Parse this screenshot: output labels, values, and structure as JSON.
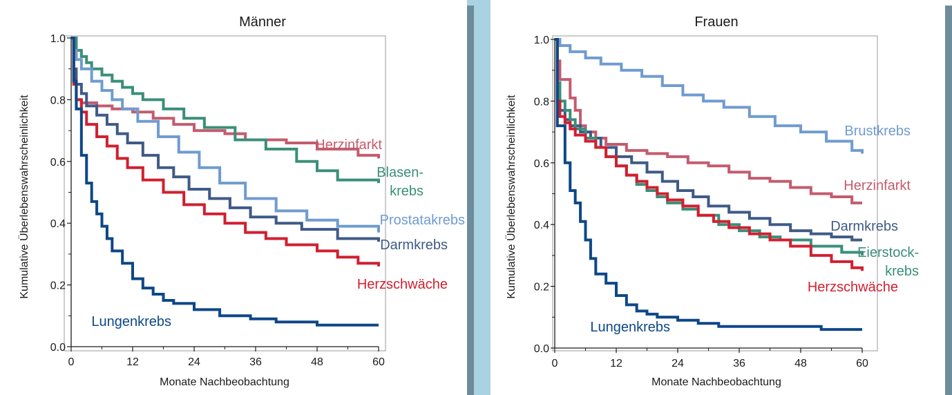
{
  "colors": {
    "Herzinfarkt": "#c45b6d",
    "Blasenkrebs": "#3a8f78",
    "Prostatakrebs": "#6f9bd0",
    "Darmkrebs": "#3f5a86",
    "Herzschwäche": "#d11f30",
    "Lungenkrebs": "#0d4787",
    "Brustkrebs": "#6f9bd0",
    "Eierstockkrebs": "#3a8f78"
  },
  "chart_data": [
    {
      "type": "line",
      "step": true,
      "title": "Männer",
      "xlabel": "Monate Nachbeobachtung",
      "ylabel": "Kumulative Überlebenswahrscheinlichkeit",
      "xlim": [
        0,
        60
      ],
      "ylim": [
        0,
        1
      ],
      "xticks": [
        "0",
        "12",
        "24",
        "36",
        "48",
        "60"
      ],
      "yticks": [
        "0.0",
        "0.2",
        "0.4",
        "0.6",
        "0.8",
        "1.0"
      ],
      "series": [
        {
          "name": "Herzinfarkt",
          "label": [
            "Herzinfarkt"
          ],
          "label_anchor": "end",
          "color_key": "Herzinfarkt",
          "x": [
            0,
            0.5,
            1,
            2,
            5,
            8,
            12,
            16,
            20,
            24,
            30,
            34,
            42,
            48,
            56,
            60
          ],
          "y": [
            1.0,
            0.86,
            0.8,
            0.79,
            0.78,
            0.77,
            0.76,
            0.74,
            0.72,
            0.7,
            0.69,
            0.67,
            0.66,
            0.64,
            0.62,
            0.61
          ]
        },
        {
          "name": "Blasen-\nkrebs",
          "label": [
            "Blasen-",
            "krebs"
          ],
          "label_anchor": "end",
          "color_key": "Blasenkrebs",
          "x": [
            0,
            1,
            2,
            3,
            4,
            6,
            8,
            10,
            12,
            14,
            18,
            22,
            26,
            32,
            38,
            44,
            48,
            52,
            60
          ],
          "y": [
            1.0,
            0.96,
            0.94,
            0.92,
            0.9,
            0.88,
            0.86,
            0.84,
            0.82,
            0.8,
            0.77,
            0.74,
            0.71,
            0.67,
            0.64,
            0.6,
            0.57,
            0.54,
            0.53
          ]
        },
        {
          "name": "Prostatakrebs",
          "label": [
            "Prostatakrebs"
          ],
          "label_anchor": "end",
          "color_key": "Prostatakrebs",
          "x": [
            0,
            0.5,
            1,
            2,
            4,
            6,
            8,
            10,
            13,
            17,
            21,
            25,
            29,
            34,
            40,
            46,
            52,
            60
          ],
          "y": [
            1.0,
            0.96,
            0.93,
            0.9,
            0.86,
            0.83,
            0.8,
            0.77,
            0.73,
            0.68,
            0.63,
            0.58,
            0.53,
            0.48,
            0.44,
            0.41,
            0.39,
            0.37
          ]
        },
        {
          "name": "Darmkrebs",
          "label": [
            "Darmkrebs"
          ],
          "label_anchor": "end",
          "color_key": "Darmkrebs",
          "x": [
            0,
            0.5,
            1,
            2,
            3,
            5,
            7,
            9,
            11,
            14,
            17,
            20,
            23,
            27,
            31,
            35,
            40,
            45,
            52,
            60
          ],
          "y": [
            1.0,
            0.9,
            0.85,
            0.82,
            0.78,
            0.75,
            0.72,
            0.69,
            0.66,
            0.62,
            0.58,
            0.55,
            0.51,
            0.48,
            0.45,
            0.42,
            0.4,
            0.38,
            0.35,
            0.34
          ]
        },
        {
          "name": "Herzschwäche",
          "label": [
            "Herzschwäche"
          ],
          "label_anchor": "end",
          "color_key": "Herzschwäche",
          "x": [
            0,
            0.5,
            1,
            2,
            3,
            5,
            7,
            9,
            11,
            14,
            18,
            22,
            26,
            30,
            34,
            38,
            42,
            48,
            52,
            56,
            60
          ],
          "y": [
            1.0,
            0.85,
            0.8,
            0.76,
            0.72,
            0.68,
            0.65,
            0.61,
            0.58,
            0.54,
            0.5,
            0.46,
            0.43,
            0.4,
            0.37,
            0.35,
            0.33,
            0.31,
            0.29,
            0.27,
            0.26
          ]
        },
        {
          "name": "Lungenkrebs",
          "label": [
            "Lungenkrebs"
          ],
          "label_anchor": "end",
          "color_key": "Lungenkrebs",
          "x": [
            0,
            0.5,
            1,
            2,
            3,
            4,
            5,
            6,
            7,
            8,
            10,
            12,
            14,
            16,
            18,
            20,
            24,
            29,
            35,
            40,
            48,
            60
          ],
          "y": [
            1.0,
            0.86,
            0.77,
            0.62,
            0.53,
            0.47,
            0.43,
            0.39,
            0.35,
            0.31,
            0.27,
            0.22,
            0.19,
            0.17,
            0.15,
            0.14,
            0.12,
            0.1,
            0.09,
            0.08,
            0.07,
            0.07
          ]
        }
      ]
    },
    {
      "type": "line",
      "step": true,
      "title": "Frauen",
      "xlabel": "Monate Nachbeobachtung",
      "ylabel": "Kumulative Überlebenswahrscheinlichkeit",
      "xlim": [
        0,
        60
      ],
      "ylim": [
        0,
        1
      ],
      "xticks": [
        "0",
        "12",
        "24",
        "36",
        "48",
        "60"
      ],
      "yticks": [
        "0.0",
        "0.2",
        "0.4",
        "0.6",
        "0.8",
        "1.0"
      ],
      "series": [
        {
          "name": "Brustkrebs",
          "label": [
            "Brustkrebs"
          ],
          "label_anchor": "end",
          "color_key": "Brustkrebs",
          "x": [
            0,
            1,
            3,
            6,
            9,
            13,
            17,
            21,
            25,
            29,
            33,
            38,
            43,
            48,
            53,
            58,
            60
          ],
          "y": [
            1.0,
            0.98,
            0.96,
            0.94,
            0.92,
            0.9,
            0.88,
            0.85,
            0.82,
            0.8,
            0.78,
            0.75,
            0.72,
            0.7,
            0.67,
            0.64,
            0.63
          ]
        },
        {
          "name": "Herzinfarkt",
          "label": [
            "Herzinfarkt"
          ],
          "label_anchor": "end",
          "color_key": "Herzinfarkt",
          "x": [
            0,
            0.5,
            1,
            2,
            3,
            4,
            5,
            6,
            8,
            10,
            14,
            18,
            22,
            26,
            30,
            34,
            38,
            42,
            46,
            50,
            54,
            58,
            60
          ],
          "y": [
            1.0,
            0.93,
            0.87,
            0.87,
            0.81,
            0.77,
            0.72,
            0.7,
            0.68,
            0.66,
            0.64,
            0.63,
            0.62,
            0.6,
            0.59,
            0.57,
            0.55,
            0.54,
            0.52,
            0.5,
            0.49,
            0.47,
            0.47
          ]
        },
        {
          "name": "Darmkrebs",
          "label": [
            "Darmkrebs"
          ],
          "label_anchor": "end",
          "color_key": "Darmkrebs",
          "x": [
            0,
            0.5,
            1,
            2,
            3,
            5,
            7,
            9,
            12,
            15,
            18,
            21,
            24,
            27,
            30,
            34,
            38,
            42,
            46,
            50,
            54,
            58,
            60
          ],
          "y": [
            1.0,
            0.82,
            0.77,
            0.74,
            0.72,
            0.7,
            0.68,
            0.65,
            0.62,
            0.6,
            0.57,
            0.54,
            0.51,
            0.49,
            0.46,
            0.44,
            0.42,
            0.4,
            0.38,
            0.37,
            0.36,
            0.35,
            0.35
          ]
        },
        {
          "name": "Eierstock-\nkrebs",
          "label": [
            "Eierstock-",
            "krebs"
          ],
          "label_anchor": "end",
          "color_key": "Eierstockkrebs",
          "x": [
            0,
            0.5,
            1,
            2,
            3,
            4,
            6,
            8,
            10,
            12,
            14,
            16,
            18,
            20,
            22,
            25,
            28,
            32,
            36,
            40,
            44,
            50,
            56,
            60
          ],
          "y": [
            1.0,
            0.86,
            0.8,
            0.77,
            0.74,
            0.71,
            0.68,
            0.65,
            0.62,
            0.59,
            0.56,
            0.53,
            0.51,
            0.49,
            0.47,
            0.45,
            0.43,
            0.4,
            0.38,
            0.36,
            0.35,
            0.33,
            0.31,
            0.3
          ]
        },
        {
          "name": "Herzschwäche",
          "label": [
            "Herzschwäche"
          ],
          "label_anchor": "end",
          "color_key": "Herzschwäche",
          "x": [
            0,
            0.5,
            1,
            2,
            3,
            4,
            6,
            8,
            10,
            12,
            14,
            16,
            18,
            20,
            22,
            25,
            28,
            31,
            34,
            38,
            42,
            46,
            50,
            54,
            58,
            60
          ],
          "y": [
            1.0,
            0.8,
            0.75,
            0.73,
            0.71,
            0.69,
            0.67,
            0.65,
            0.62,
            0.59,
            0.56,
            0.54,
            0.52,
            0.5,
            0.48,
            0.46,
            0.43,
            0.41,
            0.39,
            0.37,
            0.35,
            0.33,
            0.3,
            0.28,
            0.26,
            0.25
          ]
        },
        {
          "name": "Lungenkrebs",
          "label": [
            "Lungenkrebs"
          ],
          "label_anchor": "end",
          "color_key": "Lungenkrebs",
          "x": [
            0,
            0.5,
            1,
            2,
            3,
            4,
            5,
            6,
            7,
            8,
            10,
            12,
            14,
            16,
            18,
            20,
            24,
            28,
            32,
            38,
            44,
            52,
            60
          ],
          "y": [
            1.0,
            0.72,
            0.72,
            0.6,
            0.51,
            0.47,
            0.41,
            0.35,
            0.29,
            0.24,
            0.21,
            0.17,
            0.14,
            0.12,
            0.11,
            0.1,
            0.09,
            0.08,
            0.07,
            0.07,
            0.07,
            0.06,
            0.06
          ]
        }
      ]
    }
  ]
}
